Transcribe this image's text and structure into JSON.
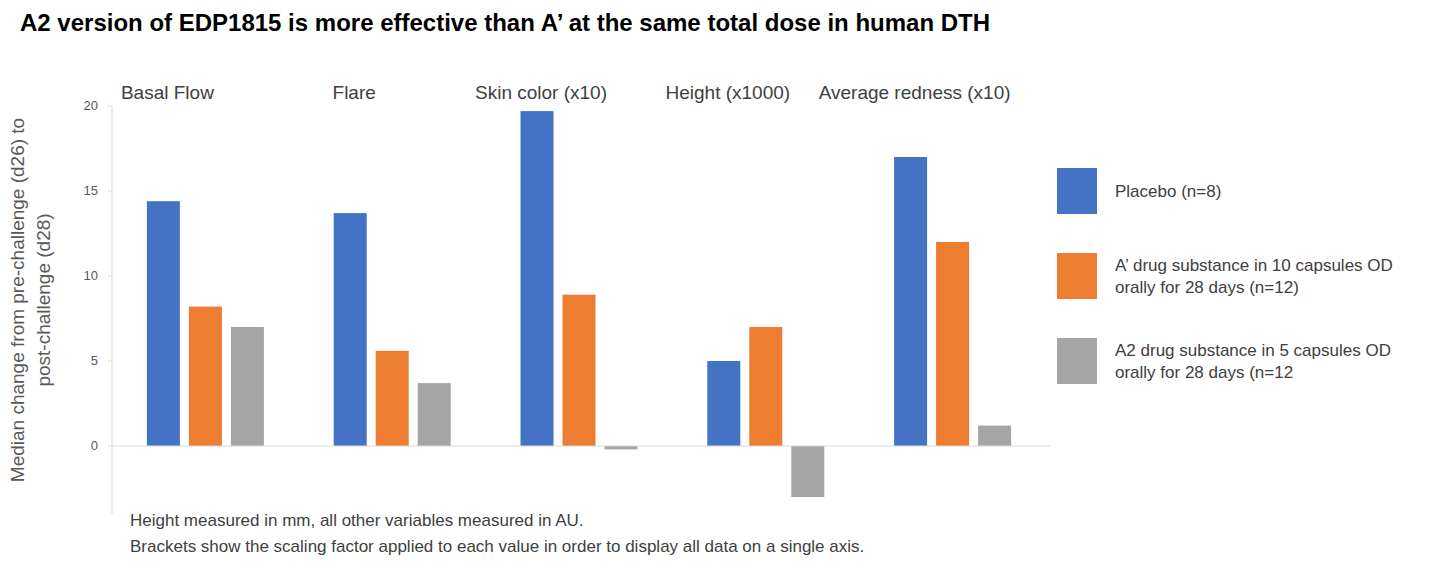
{
  "chart_data": {
    "type": "bar",
    "title": "A2 version of EDP1815 is more effective than A’ at the same total dose in human DTH",
    "y_label": "Median change  from pre-challenge (d26) to post-challenge (d28)",
    "categories": [
      "Basal Flow",
      "Flare",
      "Skin color (x10)",
      "Height (x1000)",
      "Average redness (x10)"
    ],
    "series": [
      {
        "name": "Placebo (n=8)",
        "color": "#4472c4",
        "values": [
          14.4,
          13.7,
          19.7,
          5.0,
          17.0
        ]
      },
      {
        "name": "A’ drug substance in 10 capsules OD orally for 28 days (n=12)",
        "color": "#ed7d31",
        "values": [
          8.2,
          5.6,
          8.9,
          7.0,
          12.0
        ]
      },
      {
        "name": "A2 drug substance in 5 capsules OD orally for 28 days (n=12",
        "color": "#a5a5a5",
        "values": [
          7.0,
          3.7,
          -0.2,
          -3.0,
          1.2
        ]
      }
    ],
    "ylim": [
      -4,
      20
    ],
    "yticks": [
      0,
      5,
      10,
      15,
      20
    ],
    "grid": false,
    "legend": "right",
    "annotations": [
      "Height measured in mm, all other variables measured in AU.",
      "Brackets show the scaling factor applied to each value in order to display all data on a single axis."
    ]
  }
}
